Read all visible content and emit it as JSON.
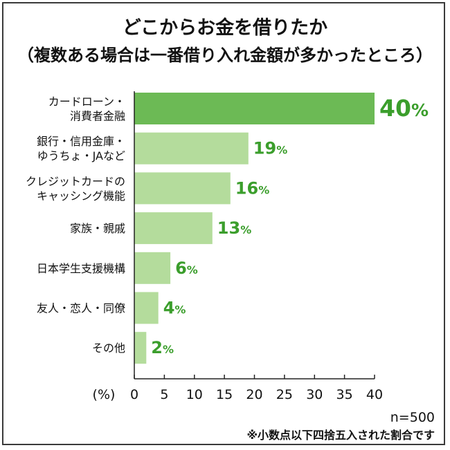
{
  "chart_data": {
    "type": "bar",
    "orientation": "horizontal",
    "title": "どこからお金を借りたか",
    "subtitle": "（複数ある場合は一番借り入れ金額が多かったところ）",
    "categories": [
      [
        "カードローン・",
        "消費者金融"
      ],
      [
        "銀行・信用金庫・",
        "ゆうちょ・JAなど"
      ],
      [
        "クレジットカードの",
        "キャッシング機能"
      ],
      [
        "家族・親戚"
      ],
      [
        "日本学生支援機構"
      ],
      [
        "友人・恋人・同僚"
      ],
      [
        "その他"
      ]
    ],
    "values": [
      40,
      19,
      16,
      13,
      6,
      4,
      2
    ],
    "value_suffix": "%",
    "xlim": [
      0,
      40
    ],
    "xticks": [
      0,
      5,
      10,
      15,
      20,
      25,
      30,
      35,
      40
    ],
    "xlabel": "(%)",
    "grid": false,
    "colors": {
      "highlight": "#6cba55",
      "bar": "#b4dc9c",
      "value_text": "#3b9e2c"
    }
  },
  "notes": {
    "n": "n=500",
    "rounding": "※小数点以下四捨五入された割合です"
  }
}
